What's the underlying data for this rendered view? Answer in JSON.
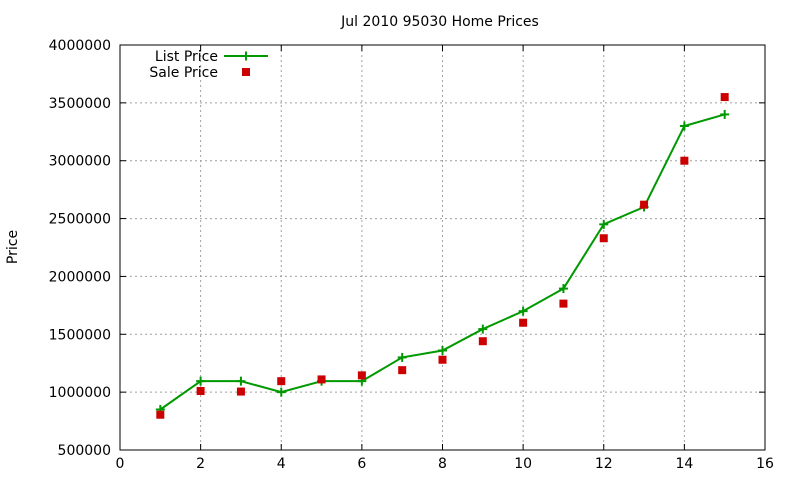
{
  "chart_data": {
    "type": "line",
    "title": "Jul 2010 95030 Home Prices",
    "xlabel": "",
    "ylabel": "Price",
    "xlim": [
      0,
      16
    ],
    "ylim": [
      500000,
      4000000
    ],
    "xticks": [
      "0",
      "2",
      "4",
      "6",
      "8",
      "10",
      "12",
      "14",
      "16"
    ],
    "yticks": [
      "500000",
      "1000000",
      "1500000",
      "2000000",
      "2500000",
      "3000000",
      "3500000",
      "4000000"
    ],
    "grid": true,
    "legend_position": "top-left",
    "series": [
      {
        "name": "List Price",
        "style": "line-points",
        "marker": "plus",
        "color": "#009900",
        "x": [
          1,
          2,
          3,
          4,
          5,
          6,
          7,
          8,
          9,
          10,
          11,
          12,
          13,
          14,
          15
        ],
        "y": [
          850000,
          1095000,
          1095000,
          1000000,
          1095000,
          1095000,
          1300000,
          1360000,
          1545000,
          1700000,
          1895000,
          2450000,
          2600000,
          3300000,
          3400000
        ]
      },
      {
        "name": "Sale Price",
        "style": "points",
        "marker": "square",
        "color": "#cc0000",
        "x": [
          1,
          2,
          3,
          4,
          5,
          6,
          7,
          8,
          9,
          10,
          11,
          12,
          13,
          14,
          15
        ],
        "y": [
          805000,
          1010000,
          1005000,
          1095000,
          1110000,
          1145000,
          1190000,
          1280000,
          1440000,
          1600000,
          1765000,
          2330000,
          2620000,
          3000000,
          3550000
        ]
      }
    ]
  }
}
